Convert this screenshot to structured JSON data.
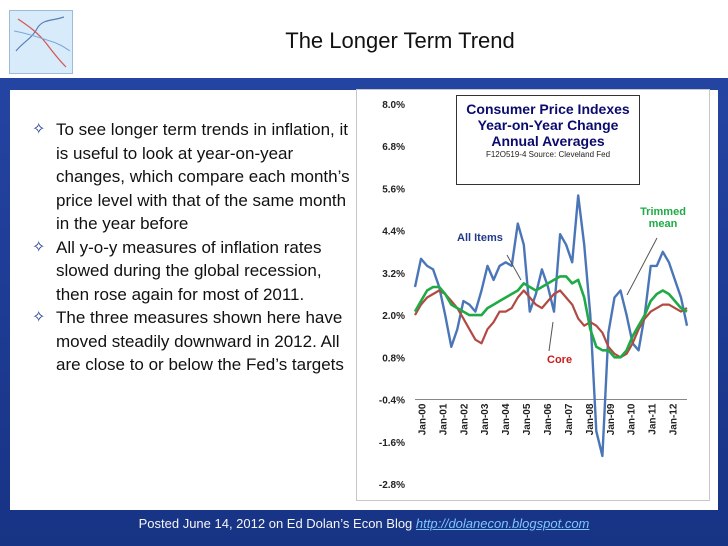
{
  "title": "The Longer Term Trend",
  "bullets": [
    "To see longer term trends in inflation, it is useful to look at year-on-year changes, which compare each month’s price level with that of the same month in the year before",
    "All y-o-y measures of inflation rates slowed during the global recession, then rose again for most of 2011.",
    "The three measures shown here have moved steadily downward in 2012. All are close to or below the Fed’s targets"
  ],
  "bullet_icon": "✧",
  "footer": {
    "text": "Posted June 14, 2012 on Ed Dolan’s Econ Blog",
    "link": "http://dolanecon.blogspot.com"
  },
  "chart_data": {
    "type": "line",
    "title": "Consumer Price Indexes",
    "subtitle_lines": [
      "Year-on-Year Change",
      "Annual Averages"
    ],
    "source": "F12O519-4 Source: Cleveland Fed",
    "x_tick_labels": [
      "Jan-00",
      "Jan-01",
      "Jan-02",
      "Jan-03",
      "Jan-04",
      "Jan-05",
      "Jan-06",
      "Jan-07",
      "Jan-08",
      "Jan-09",
      "Jan-10",
      "Jan-11",
      "Jan-12"
    ],
    "y_tick_labels": [
      "8.0%",
      "6.8%",
      "5.6%",
      "4.4%",
      "3.2%",
      "2.0%",
      "0.8%",
      "-0.4%",
      "-1.6%",
      "-2.8%"
    ],
    "ylim": [
      -2.8,
      8.0
    ],
    "annotations": {
      "all_items": "All Items",
      "core": "Core",
      "trimmed_mean": "Trimmed mean"
    },
    "colors": {
      "all_items": "#4a76b8",
      "core": "#b24a44",
      "trimmed_mean": "#1faa46"
    },
    "series": [
      {
        "name": "All Items",
        "values": [
          2.8,
          3.6,
          3.4,
          3.3,
          2.8,
          2.0,
          1.1,
          1.6,
          2.4,
          2.3,
          2.1,
          2.7,
          3.4,
          3.0,
          3.4,
          3.5,
          3.4,
          4.6,
          4.0,
          2.1,
          2.6,
          3.3,
          2.8,
          2.1,
          4.3,
          4.0,
          3.5,
          5.4,
          4.0,
          2.0,
          -1.3,
          -2.0,
          1.5,
          2.5,
          2.7,
          2.0,
          1.2,
          1.0,
          2.0,
          3.4,
          3.4,
          3.8,
          3.5,
          3.0,
          2.5,
          1.7
        ]
      },
      {
        "name": "Core",
        "values": [
          2.0,
          2.3,
          2.5,
          2.6,
          2.7,
          2.6,
          2.4,
          2.2,
          1.9,
          1.6,
          1.3,
          1.2,
          1.6,
          1.8,
          2.1,
          2.1,
          2.2,
          2.5,
          2.7,
          2.5,
          2.3,
          2.2,
          2.4,
          2.6,
          2.7,
          2.5,
          2.3,
          1.9,
          1.7,
          1.8,
          1.7,
          1.5,
          1.1,
          0.9,
          0.8,
          0.9,
          1.2,
          1.6,
          1.9,
          2.1,
          2.2,
          2.3,
          2.3,
          2.2,
          2.1,
          2.2
        ]
      },
      {
        "name": "Trimmed mean",
        "values": [
          2.1,
          2.4,
          2.7,
          2.8,
          2.8,
          2.6,
          2.3,
          2.2,
          2.1,
          2.0,
          2.0,
          2.0,
          2.2,
          2.3,
          2.4,
          2.5,
          2.6,
          2.7,
          2.9,
          2.8,
          2.7,
          2.8,
          2.9,
          3.0,
          3.1,
          3.1,
          2.9,
          3.0,
          2.5,
          1.6,
          1.1,
          1.0,
          1.0,
          0.8,
          0.8,
          1.0,
          1.4,
          1.7,
          2.0,
          2.4,
          2.6,
          2.7,
          2.6,
          2.4,
          2.2,
          2.1
        ]
      }
    ]
  }
}
